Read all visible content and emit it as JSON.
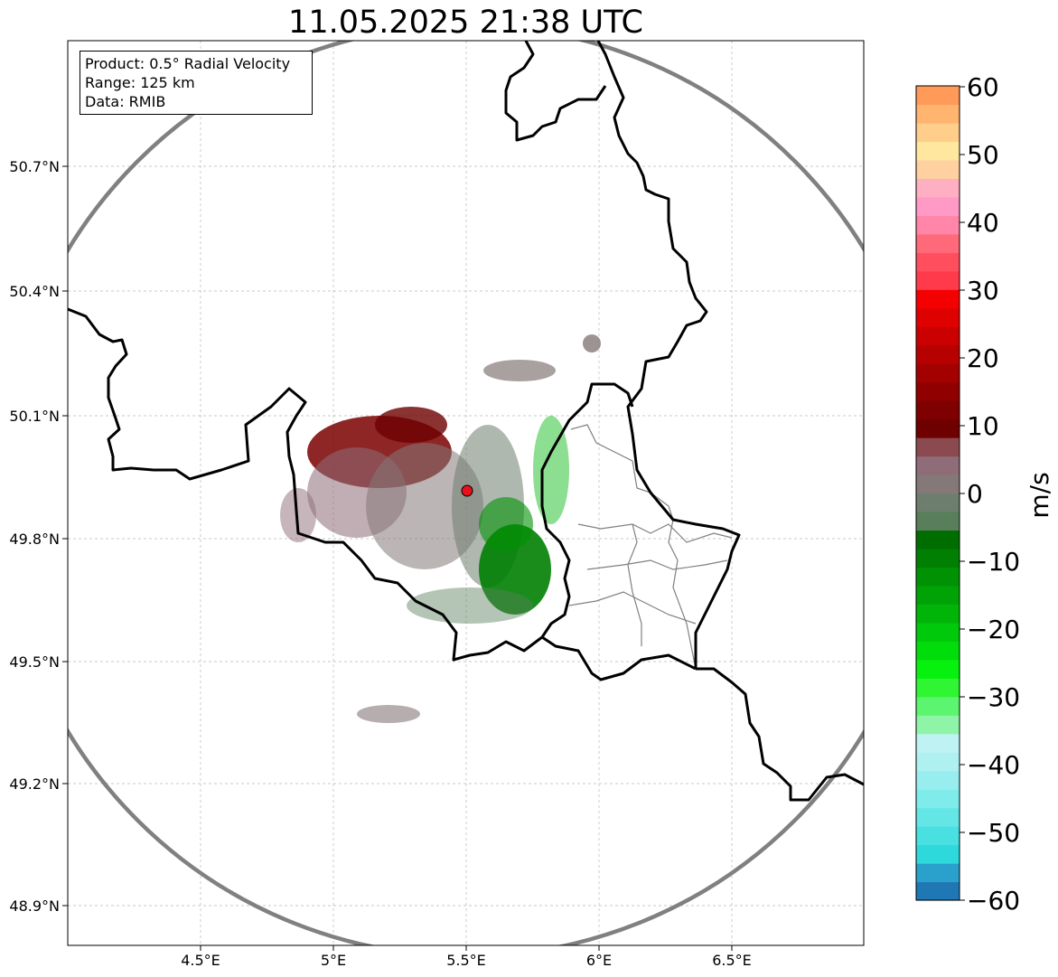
{
  "title": "11.05.2025 21:38 UTC",
  "info": {
    "product": "Product: 0.5° Radial Velocity",
    "range": "Range: 125 km",
    "data": "Data: RMIB"
  },
  "map": {
    "x_ticks": [
      "4.5°E",
      "5°E",
      "5.5°E",
      "6°E",
      "6.5°E"
    ],
    "y_ticks": [
      "50.7°N",
      "50.4°N",
      "50.1°N",
      "49.8°N",
      "49.5°N",
      "49.2°N",
      "48.9°N"
    ],
    "radar_marker_color": "#e8101c"
  },
  "colorbar": {
    "label": "m/s",
    "ticks": [
      "60",
      "50",
      "40",
      "30",
      "20",
      "10",
      "0",
      "−10",
      "−20",
      "−30",
      "−40",
      "−50",
      "−60"
    ],
    "colors": [
      "#1f77b4",
      "#2aa0cd",
      "#2ed9dc",
      "#48e0e0",
      "#65e6e6",
      "#80ebeb",
      "#98eeee",
      "#aff0f0",
      "#bff2f2",
      "#8ef5a8",
      "#5cf56f",
      "#2ff532",
      "#06f10e",
      "#00dd0a",
      "#00c80a",
      "#00b508",
      "#00a306",
      "#009104",
      "#007f02",
      "#006d00",
      "#587e5a",
      "#6e7e6e",
      "#857878",
      "#8e6c78",
      "#8b4a50",
      "#6e0000",
      "#7f0000",
      "#900000",
      "#a30000",
      "#b70000",
      "#cb0000",
      "#df0000",
      "#f50000",
      "#ff3a4a",
      "#ff4f5f",
      "#ff6a7a",
      "#ff86a8",
      "#ff9ac6",
      "#ffafc2",
      "#ffd0a0",
      "#ffe7a0",
      "#ffce8a",
      "#ffb470",
      "#ff9a58"
    ]
  }
}
